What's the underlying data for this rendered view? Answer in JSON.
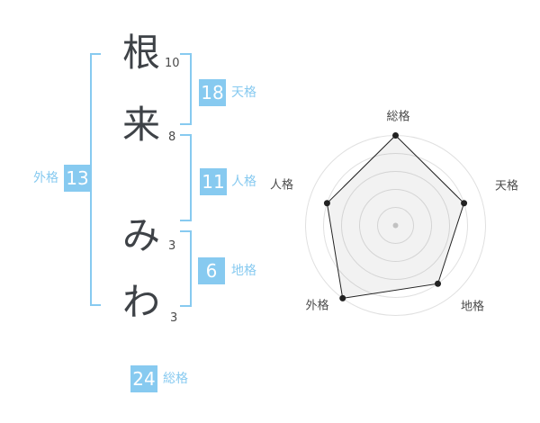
{
  "colors": {
    "accent_blue": "#87caf0",
    "badge_text": "#ffffff",
    "kanji_color": "#3e4247",
    "stroke_num_color": "#4a4a4a",
    "grid_color": "#e0e0e0",
    "polygon_stroke": "#222222",
    "polygon_fill": "rgba(0,0,0,0.05)",
    "vertex_dot_color": "#222222",
    "center_dot_color": "#c2c2c2",
    "axis_label_color": "#4a4a4a"
  },
  "name_display": {
    "characters": [
      {
        "char": "根",
        "strokes": "10"
      },
      {
        "char": "来",
        "strokes": "8"
      },
      {
        "char": "み",
        "strokes": "3"
      },
      {
        "char": "わ",
        "strokes": "3"
      }
    ]
  },
  "kaku_badges": [
    {
      "id": "tenkaku",
      "value": "18",
      "label": "天格"
    },
    {
      "id": "jinkaku",
      "value": "11",
      "label": "人格"
    },
    {
      "id": "chikaku",
      "value": "6",
      "label": "地格"
    },
    {
      "id": "gaikaku",
      "value": "13",
      "label": "外格"
    },
    {
      "id": "soukaku",
      "value": "24",
      "label": "総格"
    }
  ],
  "chart_data": {
    "type": "radar",
    "axes": [
      "総格",
      "天格",
      "地格",
      "外格",
      "人格"
    ],
    "values": [
      5,
      4,
      4,
      5,
      4
    ],
    "max": 5,
    "rings": 5,
    "grid": "circular concentric circles, no radial spokes",
    "legend": false,
    "title": ""
  }
}
